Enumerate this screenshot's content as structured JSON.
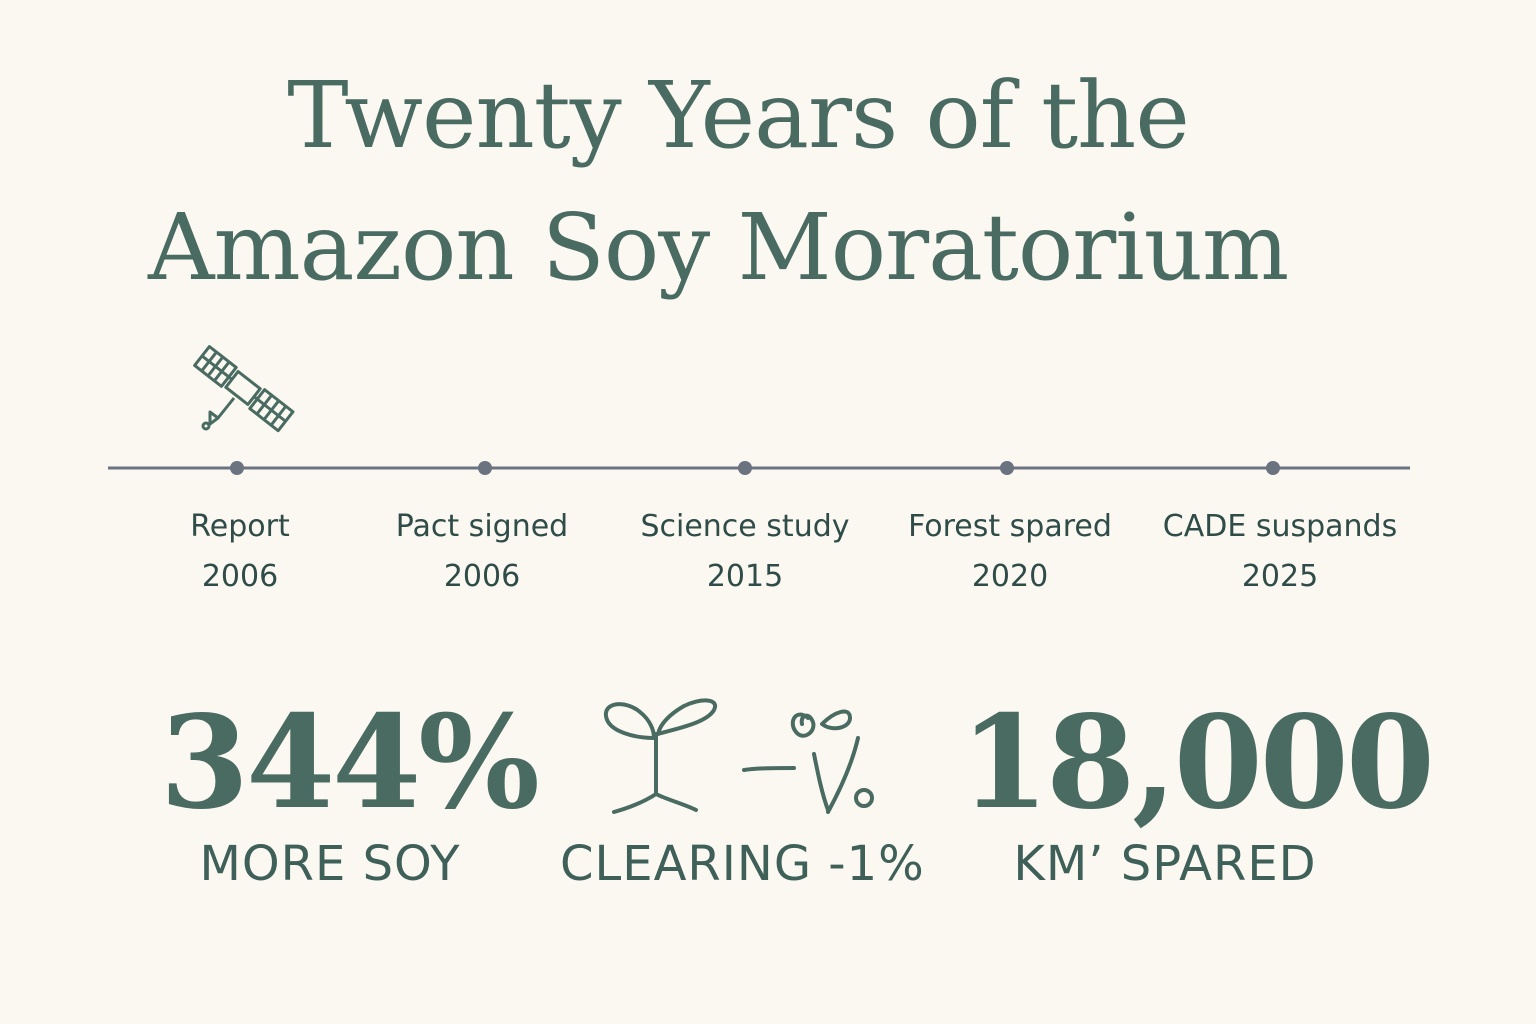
{
  "title": {
    "line1": "Twenty Years of the",
    "line2": "Amazon Soy Moratorium"
  },
  "timeline": {
    "events": [
      {
        "label": "Report",
        "year": "2006"
      },
      {
        "label": "Pact signed",
        "year": "2006"
      },
      {
        "label": "Science study",
        "year": "2015"
      },
      {
        "label": "Forest spared",
        "year": "2020"
      },
      {
        "label": "CADE suspands",
        "year": "2025"
      }
    ]
  },
  "stats": {
    "soy": {
      "value": "344%",
      "label": "MORE SOY"
    },
    "clearing": {
      "label": "CLEARING -1%"
    },
    "spared": {
      "value": "18,000",
      "label": "KM’ SPARED"
    }
  },
  "icons": {
    "satellite": "satellite-icon",
    "sprout": "sprout-icon",
    "percent": "percent-icon"
  },
  "colors": {
    "background": "#fbf8f1",
    "title": "#4a6b62",
    "timeline": "#6b7280",
    "text": "#2f4c48"
  }
}
